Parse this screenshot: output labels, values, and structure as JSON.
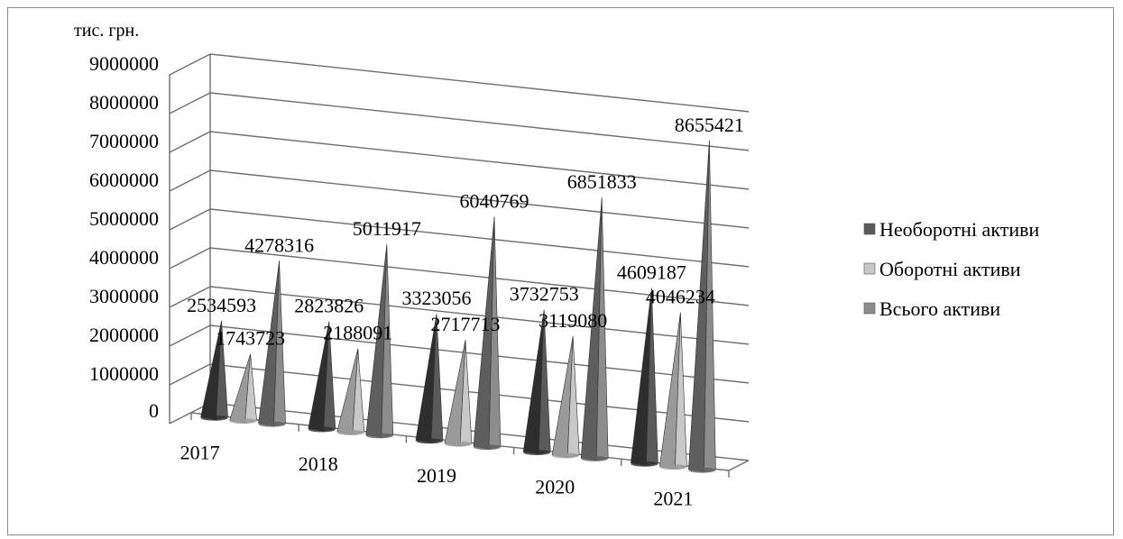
{
  "chart_data": {
    "type": "bar",
    "title": "",
    "ylabel": "тис. грн.",
    "xlabel": "",
    "ylim": [
      0,
      9000000
    ],
    "y_ticks": [
      "9000000",
      "8000000",
      "7000000",
      "6000000",
      "5000000",
      "4000000",
      "3000000",
      "2000000",
      "1000000",
      "0"
    ],
    "y_tick_values": [
      9000000,
      8000000,
      7000000,
      6000000,
      5000000,
      4000000,
      3000000,
      2000000,
      1000000,
      0
    ],
    "categories": [
      "2017",
      "2018",
      "2019",
      "2020",
      "2021"
    ],
    "series": [
      {
        "name": "Необоротні активи",
        "color": "#5a5a5a",
        "values": [
          2534593,
          2823826,
          3323056,
          3732753,
          4609187
        ]
      },
      {
        "name": "Оборотні активи",
        "color": "#c8c8c8",
        "values": [
          1743723,
          2188091,
          2717713,
          3119080,
          4046234
        ]
      },
      {
        "name": "Всього активи",
        "color": "#8c8c8c",
        "values": [
          4278316,
          5011917,
          6040769,
          6851833,
          8655421
        ]
      }
    ],
    "data_labels": [
      [
        "2534593",
        "2823826",
        "3323056",
        "3732753",
        "4609187"
      ],
      [
        "1743723",
        "2188091",
        "2717713",
        "3119080",
        "4046234"
      ],
      [
        "4278316",
        "5011917",
        "6040769",
        "6851833",
        "8655421"
      ]
    ],
    "shape": "3d-cone",
    "grid": true,
    "legend_position": "right"
  }
}
